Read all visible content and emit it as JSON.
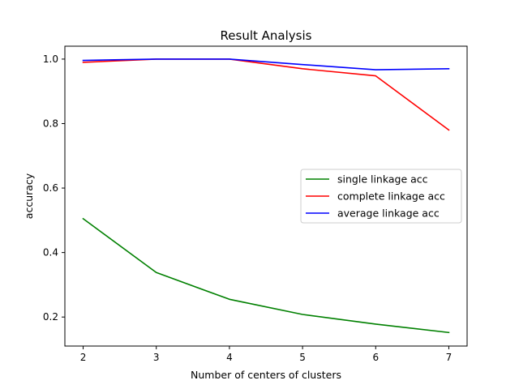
{
  "chart_data": {
    "type": "line",
    "title": "Result Analysis",
    "xlabel": "Number of centers of clusters",
    "ylabel": "accuracy",
    "x": [
      2,
      3,
      4,
      5,
      6,
      7
    ],
    "xlim": [
      1.75,
      7.25
    ],
    "ylim": [
      0.11,
      1.04
    ],
    "xticks": [
      2,
      3,
      4,
      5,
      6,
      7
    ],
    "yticks": [
      0.2,
      0.4,
      0.6,
      0.8,
      1.0
    ],
    "ytick_labels": [
      "0.2",
      "0.4",
      "0.6",
      "0.8",
      "1.0"
    ],
    "grid": false,
    "legend_position": "center-right",
    "series": [
      {
        "name": "single linkage acc",
        "color": "#008000",
        "values": [
          0.505,
          0.338,
          0.255,
          0.208,
          0.178,
          0.152
        ]
      },
      {
        "name": "complete linkage acc",
        "color": "#ff0000",
        "values": [
          0.99,
          1.0,
          1.0,
          0.97,
          0.948,
          0.78
        ]
      },
      {
        "name": "average linkage acc",
        "color": "#0000ff",
        "values": [
          0.996,
          1.0,
          1.0,
          0.983,
          0.967,
          0.97
        ]
      }
    ]
  }
}
